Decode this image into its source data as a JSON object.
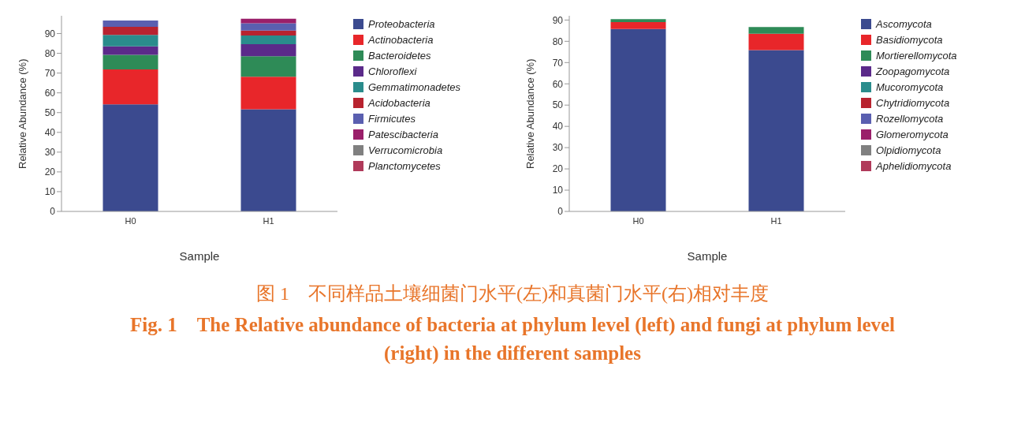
{
  "chart_data": [
    {
      "type": "bar",
      "stacked": true,
      "xlabel": "Sample",
      "ylabel": "Relative Abundance (%)",
      "categories": [
        "H0",
        "H1"
      ],
      "ylim": [
        0,
        99
      ],
      "yticks": [
        0,
        10,
        20,
        30,
        40,
        50,
        60,
        70,
        80,
        90
      ],
      "grid": false,
      "legend": "right",
      "series": [
        {
          "name": "Proteobacteria",
          "color": "#3b4a8f",
          "values": [
            54.2,
            51.7
          ]
        },
        {
          "name": "Actinobacteria",
          "color": "#e8262a",
          "values": [
            17.7,
            16.5
          ]
        },
        {
          "name": "Bacteroidetes",
          "color": "#2e8b57",
          "values": [
            7.3,
            10.3
          ]
        },
        {
          "name": "Chloroflexi",
          "color": "#5b2a8a",
          "values": [
            4.3,
            6.1
          ]
        },
        {
          "name": "Gemmatimonadetes",
          "color": "#2a8c8c",
          "values": [
            5.8,
            4.4
          ]
        },
        {
          "name": "Acidobacteria",
          "color": "#b8232f",
          "values": [
            4.1,
            2.5
          ]
        },
        {
          "name": "Firmicutes",
          "color": "#5a5fb0",
          "values": [
            3.2,
            3.7
          ]
        },
        {
          "name": "Patescibacteria",
          "color": "#9a1f6a",
          "values": [
            null,
            2.3
          ]
        },
        {
          "name": "Verrucomicrobia",
          "color": "#808080",
          "values": [
            null,
            null
          ]
        },
        {
          "name": "Planctomycetes",
          "color": "#b03a5a",
          "values": [
            null,
            null
          ]
        }
      ],
      "annotations": [
        "图 1　不同样品土壤细菌门水平(左)和真菌门水平(右)相对丰度",
        "Fig. 1　The Relative abundance of bacteria at phylum level (left) and fungi at phylum level (right) in the different samples"
      ]
    },
    {
      "type": "bar",
      "stacked": true,
      "xlabel": "Sample",
      "ylabel": "Relative Abundance (%)",
      "categories": [
        "H0",
        "H1"
      ],
      "ylim": [
        0,
        92
      ],
      "yticks": [
        0,
        10,
        20,
        30,
        40,
        50,
        60,
        70,
        80,
        90
      ],
      "grid": false,
      "legend": "right",
      "series": [
        {
          "name": "Ascomycota",
          "color": "#3b4a8f",
          "values": [
            85.8,
            75.9
          ]
        },
        {
          "name": "Basidiomycota",
          "color": "#e8262a",
          "values": [
            3.2,
            7.7
          ]
        },
        {
          "name": "Mortierellomycota",
          "color": "#2e8b57",
          "values": [
            1.4,
            3.1
          ]
        },
        {
          "name": "Zoopagomycota",
          "color": "#5b2a8a",
          "values": [
            null,
            null
          ]
        },
        {
          "name": "Mucoromycota",
          "color": "#2a8c8c",
          "values": [
            null,
            null
          ]
        },
        {
          "name": "Chytridiomycota",
          "color": "#b8232f",
          "values": [
            null,
            null
          ]
        },
        {
          "name": "Rozellomycota",
          "color": "#5a5fb0",
          "values": [
            null,
            null
          ]
        },
        {
          "name": "Glomeromycota",
          "color": "#9a1f6a",
          "values": [
            null,
            null
          ]
        },
        {
          "name": "Olpidiomycota",
          "color": "#808080",
          "values": [
            null,
            null
          ]
        },
        {
          "name": "Aphelidiomycota",
          "color": "#b03a5a",
          "values": [
            null,
            null
          ]
        }
      ]
    }
  ]
}
